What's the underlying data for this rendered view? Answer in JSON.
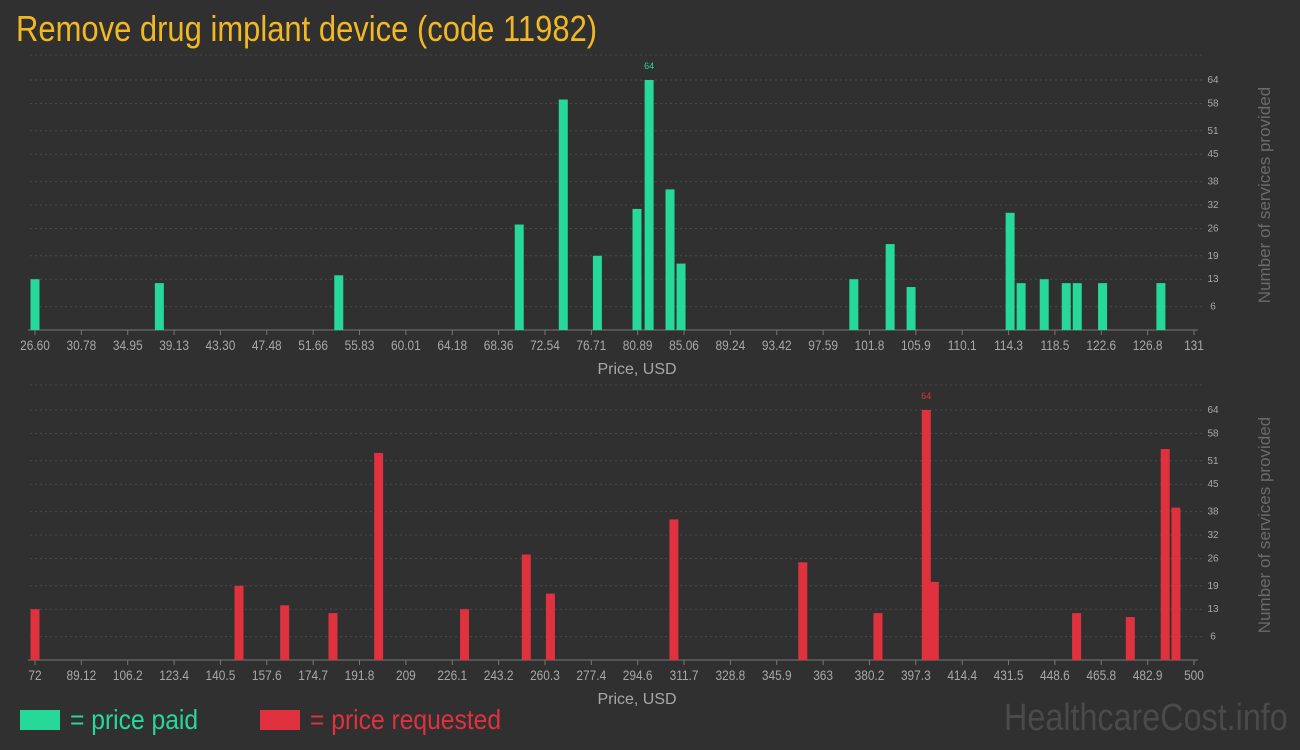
{
  "title": "Remove drug implant device (code 11982)",
  "colors": {
    "paid": "#26d89a",
    "requested": "#e0313f",
    "title": "#f2b824",
    "background": "#303030"
  },
  "legend": {
    "paid": "= price paid",
    "requested": "= price requested"
  },
  "watermark": "HealthcareCost.info",
  "chart_data": [
    {
      "type": "bar",
      "xlabel": "Price, USD",
      "ylabel": "Number of services provided",
      "color_key": "paid",
      "ylim": [
        0,
        64
      ],
      "y_ticks": [
        "6",
        "13",
        "19",
        "26",
        "32",
        "38",
        "45",
        "51",
        "58",
        "64"
      ],
      "x_ticks": [
        "26.60",
        "30.78",
        "34.95",
        "39.13",
        "43.30",
        "47.48",
        "51.66",
        "55.83",
        "60.01",
        "64.18",
        "68.36",
        "72.54",
        "76.71",
        "80.89",
        "85.06",
        "89.24",
        "93.42",
        "97.59",
        "101.8",
        "105.9",
        "110.1",
        "114.3",
        "118.5",
        "122.6",
        "126.8",
        "131"
      ],
      "x_range": [
        26.6,
        131
      ],
      "x": [
        26.6,
        37.9,
        54.2,
        70.6,
        74.6,
        77.7,
        81.3,
        82.4,
        84.3,
        85.3,
        101.0,
        104.3,
        106.2,
        115.2,
        116.2,
        118.3,
        120.3,
        121.3,
        123.6,
        128.9
      ],
      "values": [
        13,
        12,
        14,
        27,
        59,
        19,
        31,
        64,
        36,
        17,
        13,
        22,
        11,
        30,
        12,
        13,
        12,
        12,
        12,
        12
      ],
      "max_label": "64"
    },
    {
      "type": "bar",
      "xlabel": "Price, USD",
      "ylabel": "Number of services provided",
      "color_key": "requested",
      "ylim": [
        0,
        64
      ],
      "y_ticks": [
        "6",
        "13",
        "19",
        "26",
        "32",
        "38",
        "45",
        "51",
        "58",
        "64"
      ],
      "x_ticks": [
        "72",
        "89.12",
        "106.2",
        "123.4",
        "140.5",
        "157.6",
        "174.7",
        "191.8",
        "209",
        "226.1",
        "243.2",
        "260.3",
        "277.4",
        "294.6",
        "311.7",
        "328.8",
        "345.9",
        "363",
        "380.2",
        "397.3",
        "414.4",
        "431.5",
        "448.6",
        "465.8",
        "482.9",
        "500"
      ],
      "x_range": [
        72,
        500
      ],
      "x": [
        72,
        148,
        165,
        183,
        200,
        232,
        255,
        264,
        310,
        358,
        386,
        404,
        407,
        460,
        493,
        480,
        497
      ],
      "values": [
        13,
        19,
        14,
        12,
        53,
        13,
        27,
        17,
        36,
        25,
        12,
        64,
        20,
        12,
        54,
        11,
        39
      ],
      "max_label": "64"
    }
  ]
}
